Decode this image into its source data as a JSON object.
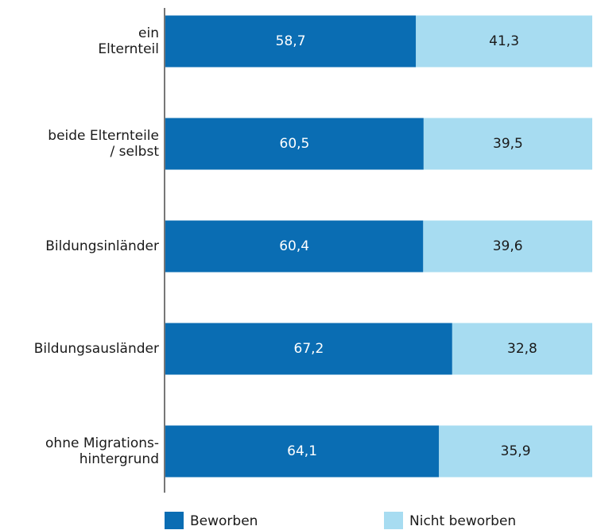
{
  "chart_data": {
    "type": "stacked_bar_horizontal",
    "categories": [
      [
        "ein",
        "Elternteil"
      ],
      [
        "beide Elternteile",
        "/ selbst"
      ],
      [
        "Bildungsinländer"
      ],
      [
        "Bildungsausländer"
      ],
      [
        "ohne Migrations-",
        "hintergrund"
      ]
    ],
    "xlim": [
      0,
      100
    ],
    "series": [
      {
        "name": "Beworben",
        "color": "#0a6db3",
        "values": [
          58.7,
          60.5,
          60.4,
          67.2,
          64.1
        ],
        "value_labels": [
          "58,7",
          "60,5",
          "60,4",
          "67,2",
          "64,1"
        ]
      },
      {
        "name": "Nicht beworben",
        "color": "#a7dcf1",
        "values": [
          41.3,
          39.5,
          39.6,
          32.8,
          35.9
        ],
        "value_labels": [
          "41,3",
          "39,5",
          "39,6",
          "32,8",
          "35,9"
        ]
      }
    ]
  }
}
